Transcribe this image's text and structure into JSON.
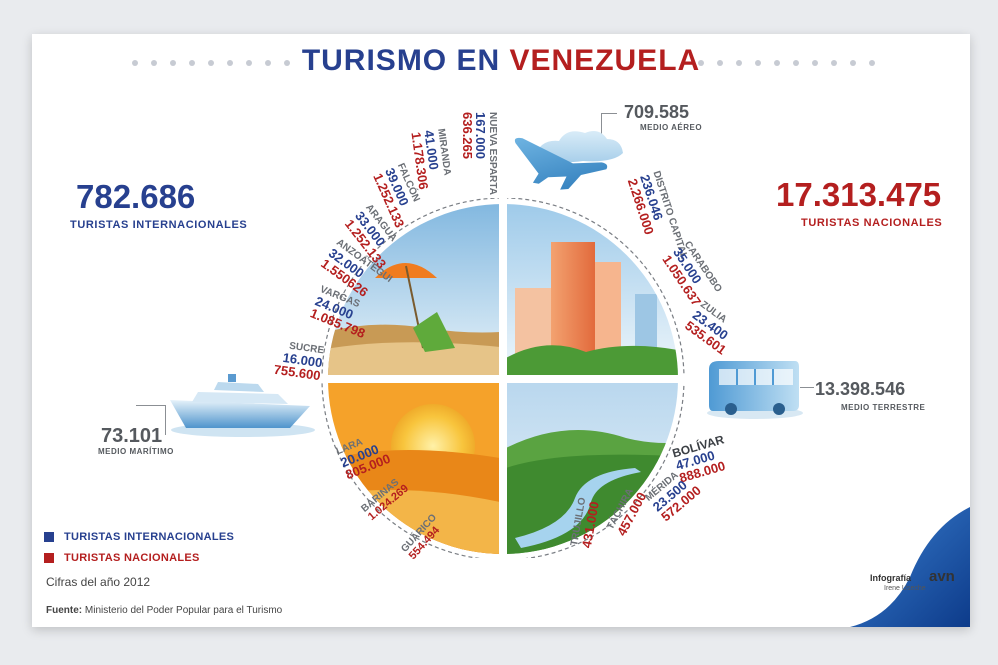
{
  "title": {
    "part1": "TURISMO EN",
    "part2": "VENEZUELA"
  },
  "international": {
    "value": "782.686",
    "label": "TURISTAS INTERNACIONALES"
  },
  "national": {
    "value": "17.313.475",
    "label": "TURISTAS NACIONALES"
  },
  "modes": {
    "air": {
      "value": "709.585",
      "label": "MEDIO AÉREO"
    },
    "land": {
      "value": "13.398.546",
      "label": "MEDIO TERRESTRE"
    },
    "sea": {
      "value": "73.101",
      "label": "MEDIO MARÍTIMO"
    }
  },
  "states": [
    {
      "name": "NUEVA ESPARTA",
      "intl": "167.000",
      "nat": "636.265"
    },
    {
      "name": "MIRANDA",
      "intl": "41.000",
      "nat": "1.178.306"
    },
    {
      "name": "FALCÓN",
      "intl": "39.000",
      "nat": "1.252.133"
    },
    {
      "name": "ARAGUA",
      "intl": "33.000",
      "nat": "1.252.133"
    },
    {
      "name": "ANZOÁTEGUI",
      "intl": "32.000",
      "nat": "1.550626"
    },
    {
      "name": "VARGAS",
      "intl": "24.000",
      "nat": "1.085.798"
    },
    {
      "name": "SUCRE",
      "intl": "16.000",
      "nat": "755.600"
    },
    {
      "name": "DISTRITO CAPITAL",
      "intl": "236.046",
      "nat": "2.266.000"
    },
    {
      "name": "CARABOBO",
      "intl": "35.000",
      "nat": "1.050.637"
    },
    {
      "name": "ZULIA",
      "intl": "23.400",
      "nat": "535.601"
    },
    {
      "name": "BOLÍVAR",
      "intl": "47.000",
      "nat": "888.000"
    },
    {
      "name": "MÉRIDA",
      "intl": "23.500",
      "nat": "572.000"
    },
    {
      "name": "TÁCHIRA",
      "intl": "",
      "nat": "457.000"
    },
    {
      "name": "TRUJILLO",
      "intl": "",
      "nat": "431.000"
    },
    {
      "name": "LARA",
      "intl": "20.000",
      "nat": "805.000"
    },
    {
      "name": "BARINAS",
      "intl": "",
      "nat": "1.024.269"
    },
    {
      "name": "GUÁRICO",
      "intl": "",
      "nat": "554.494"
    }
  ],
  "legend": {
    "intl": "TURISTAS INTERNACIONALES",
    "nat": "TURISTAS NACIONALES"
  },
  "colors": {
    "intl": "#27408f",
    "nat": "#b41f1f"
  },
  "year_note": "Cifras del año 2012",
  "source": {
    "label": "Fuente:",
    "text": "Ministerio del Poder Popular para el Turismo"
  },
  "credit": {
    "title": "Infografía",
    "author": "Irene Useche",
    "logo": "avn"
  }
}
